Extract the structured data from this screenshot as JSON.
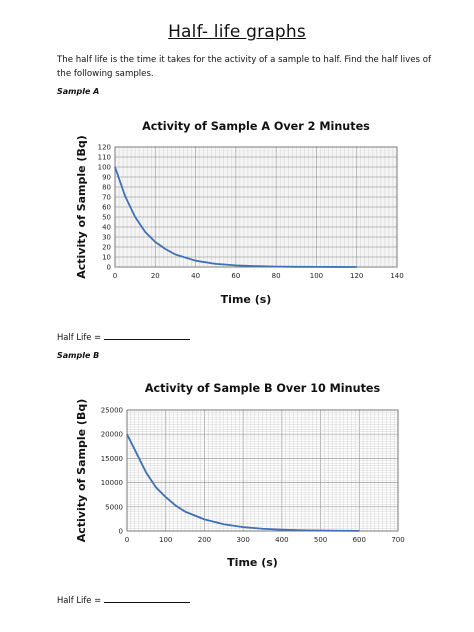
{
  "page": {
    "title": "Half- life graphs",
    "intro": "The half life is the time it takes for the activity of a sample to half. Find the half lives of the following samples.",
    "sample_a_label": "Sample A",
    "sample_b_label": "Sample B",
    "half_life_label": "Half Life ="
  },
  "chart_data": [
    {
      "type": "line",
      "title": "Activity of Sample A Over 2 Minutes",
      "xlabel": "Time (s)",
      "ylabel": "Activity of Sample (Bq)",
      "xlim": [
        0,
        140
      ],
      "ylim": [
        0,
        120
      ],
      "xticks": [
        "0",
        "20",
        "40",
        "60",
        "80",
        "100",
        "120",
        "140"
      ],
      "yticks": [
        "0",
        "10",
        "20",
        "30",
        "40",
        "50",
        "60",
        "70",
        "80",
        "90",
        "100",
        "110",
        "120"
      ],
      "grid": true,
      "line_color": "#3f6fb5",
      "series": [
        {
          "x": [
            0,
            5,
            10,
            15,
            20,
            25,
            30,
            40,
            50,
            60,
            70,
            80,
            90,
            100,
            110,
            120
          ],
          "values": [
            100,
            71,
            50,
            35,
            25,
            18,
            12.5,
            6.3,
            3.1,
            1.6,
            0.8,
            0.4,
            0.2,
            0.1,
            0.05,
            0.02
          ]
        }
      ]
    },
    {
      "type": "line",
      "title": "Activity of Sample B Over 10 Minutes",
      "xlabel": "Time (s)",
      "ylabel": "Activity of Sample (Bq)",
      "xlim": [
        0,
        700
      ],
      "ylim": [
        0,
        25000
      ],
      "xticks": [
        "0",
        "100",
        "200",
        "300",
        "400",
        "500",
        "600",
        "700"
      ],
      "yticks": [
        "0",
        "5000",
        "10000",
        "15000",
        "20000",
        "25000"
      ],
      "grid": true,
      "line_color": "#3f6fb5",
      "series": [
        {
          "x": [
            0,
            25,
            50,
            75,
            100,
            125,
            150,
            200,
            250,
            300,
            350,
            400,
            450,
            500,
            550,
            600
          ],
          "values": [
            20000,
            16000,
            12000,
            9000,
            7000,
            5300,
            4000,
            2400,
            1400,
            800,
            470,
            270,
            160,
            90,
            50,
            30
          ]
        }
      ]
    }
  ]
}
